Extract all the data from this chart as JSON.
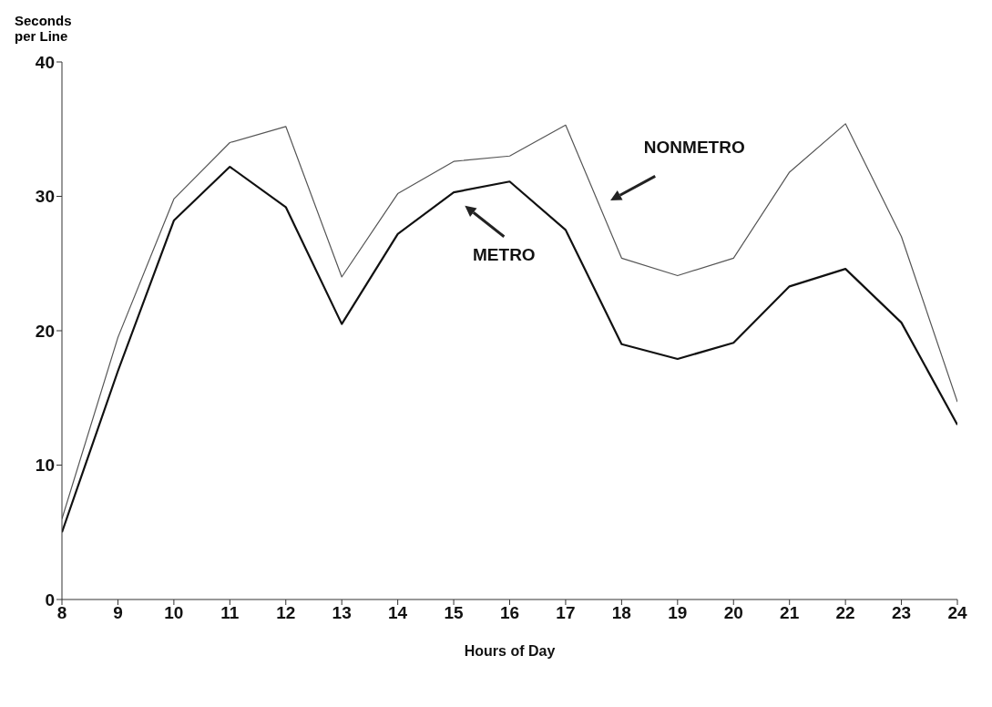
{
  "chart_data": {
    "type": "line",
    "ylabel": "Seconds per Line",
    "xlabel": "Hours of Day",
    "x": [
      8,
      9,
      10,
      11,
      12,
      13,
      14,
      15,
      16,
      17,
      18,
      19,
      20,
      21,
      22,
      23,
      24
    ],
    "xlim": [
      8,
      24
    ],
    "xticks": [
      8,
      9,
      10,
      11,
      12,
      13,
      14,
      15,
      16,
      17,
      18,
      19,
      20,
      21,
      22,
      23,
      24
    ],
    "ylim": [
      0,
      40
    ],
    "yticks": [
      0,
      10,
      20,
      30,
      40
    ],
    "grid": false,
    "marker": "none",
    "line_style": "solid",
    "series": [
      {
        "name": "NONMETRO",
        "color": "#555555",
        "values": [
          6,
          19.5,
          29.8,
          34,
          35.2,
          24,
          30.2,
          32.6,
          33,
          35.3,
          25.4,
          24.1,
          25.4,
          31.8,
          35.4,
          27,
          14.7
        ]
      },
      {
        "name": "METRO",
        "color": "#111111",
        "values": [
          5,
          17,
          28.2,
          32.2,
          29.2,
          20.5,
          27.2,
          30.3,
          31.1,
          27.5,
          19,
          17.9,
          19.1,
          23.3,
          24.6,
          20.6,
          13
        ]
      }
    ]
  }
}
